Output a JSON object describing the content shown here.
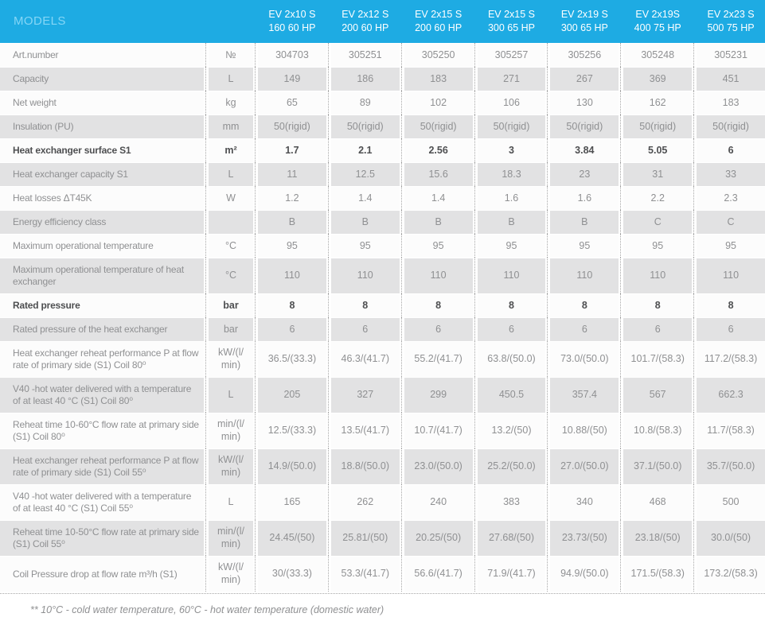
{
  "colors": {
    "header_bg": "#1eabe3",
    "models_color": "#85d6f6",
    "header_col_text": "#ffffff",
    "row_shaded_bg": "#e2e2e3",
    "row_plain_bg": "#fcfcfc",
    "text_gray": "#8f9092",
    "text_dark": "#4e4f51",
    "sep": "#a5a5a5",
    "footnote_color": "#8f9092"
  },
  "table": {
    "models_label": "MODELS",
    "columns": [
      "EV 2x10 S\n160 60 HP",
      "EV 2x12 S\n200 60 HP",
      "EV 2x15 S\n200 60 HP",
      "EV 2x15 S\n300 65 HP",
      "EV 2x19 S\n300 65 HP",
      "EV 2x19S\n400 75 HP",
      "EV 2x23 S\n500 75 HP"
    ],
    "rows": [
      {
        "label": "Art.number",
        "unit": "№",
        "bold": false,
        "tall": false,
        "values": [
          "304703",
          "305251",
          "305250",
          "305257",
          "305256",
          "305248",
          "305231"
        ]
      },
      {
        "label": "Capacity",
        "unit": "L",
        "bold": false,
        "tall": false,
        "values": [
          "149",
          "186",
          "183",
          "271",
          "267",
          "369",
          "451"
        ]
      },
      {
        "label": "Net weight",
        "unit": "kg",
        "bold": false,
        "tall": false,
        "values": [
          "65",
          "89",
          "102",
          "106",
          "130",
          "162",
          "183"
        ]
      },
      {
        "label": "Insulation (PU)",
        "unit": "mm",
        "bold": false,
        "tall": false,
        "values": [
          "50(rigid)",
          "50(rigid)",
          "50(rigid)",
          "50(rigid)",
          "50(rigid)",
          "50(rigid)",
          "50(rigid)"
        ]
      },
      {
        "label": "Heat exchanger surface S1",
        "unit": "m²",
        "bold": true,
        "tall": false,
        "values": [
          "1.7",
          "2.1",
          "2.56",
          "3",
          "3.84",
          "5.05",
          "6"
        ]
      },
      {
        "label": "Heat exchanger capacity S1",
        "unit": "L",
        "bold": false,
        "tall": false,
        "values": [
          "11",
          "12.5",
          "15.6",
          "18.3",
          "23",
          "31",
          "33"
        ]
      },
      {
        "label": "Heat losses ΔT45K",
        "unit": "W",
        "bold": false,
        "tall": false,
        "values": [
          "1.2",
          "1.4",
          "1.4",
          "1.6",
          "1.6",
          "2.2",
          "2.3"
        ]
      },
      {
        "label": "Energy efficiency class",
        "unit": "",
        "bold": false,
        "tall": false,
        "values": [
          "B",
          "B",
          "B",
          "B",
          "B",
          "C",
          "C"
        ]
      },
      {
        "label": "Maximum operational temperature",
        "unit": "°C",
        "bold": false,
        "tall": false,
        "values": [
          "95",
          "95",
          "95",
          "95",
          "95",
          "95",
          "95"
        ]
      },
      {
        "label": "Maximum operational temperature of heat exchanger",
        "unit": "°C",
        "bold": false,
        "tall": true,
        "values": [
          "110",
          "110",
          "110",
          "110",
          "110",
          "110",
          "110"
        ]
      },
      {
        "label": "Rated pressure",
        "unit": "bar",
        "bold": true,
        "tall": false,
        "values": [
          "8",
          "8",
          "8",
          "8",
          "8",
          "8",
          "8"
        ]
      },
      {
        "label": "Rated pressure of the heat exchanger",
        "unit": "bar",
        "bold": false,
        "tall": false,
        "values": [
          "6",
          "6",
          "6",
          "6",
          "6",
          "6",
          "6"
        ]
      },
      {
        "label": "Heat exchanger reheat performance P at flow rate of primary side (S1) Coil 80⁰",
        "unit": "kW/(l/\nmin)",
        "bold": false,
        "tall": true,
        "values": [
          "36.5/(33.3)",
          "46.3/(41.7)",
          "55.2/(41.7)",
          "63.8/(50.0)",
          "73.0/(50.0)",
          "101.7/(58.3)",
          "117.2/(58.3)"
        ]
      },
      {
        "label": "V40 -hot water delivered with a temperature of at least 40 °C (S1) Coil 80⁰",
        "unit": "L",
        "bold": false,
        "tall": true,
        "values": [
          "205",
          "327",
          "299",
          "450.5",
          "357.4",
          "567",
          "662.3"
        ]
      },
      {
        "label": "Reheat time 10-60°C flow rate at primary side (S1) Coil 80⁰",
        "unit": "min/(l/\nmin)",
        "bold": false,
        "tall": true,
        "values": [
          "12.5/(33.3)",
          "13.5/(41.7)",
          "10.7/(41.7)",
          "13.2/(50)",
          "10.88/(50)",
          "10.8/(58.3)",
          "11.7/(58.3)"
        ]
      },
      {
        "label": "Heat exchanger reheat performance P at flow rate of primary side (S1) Coil 55⁰",
        "unit": "kW/(l/\nmin)",
        "bold": false,
        "tall": true,
        "values": [
          "14.9/(50.0)",
          "18.8/(50.0)",
          "23.0/(50.0)",
          "25.2/(50.0)",
          "27.0/(50.0)",
          "37.1/(50.0)",
          "35.7/(50.0)"
        ]
      },
      {
        "label": "V40 -hot water delivered with a temperature of at least 40 °C (S1) Coil 55⁰",
        "unit": "L",
        "bold": false,
        "tall": true,
        "values": [
          "165",
          "262",
          "240",
          "383",
          "340",
          "468",
          "500"
        ]
      },
      {
        "label": "Reheat time 10-50°C flow rate at primary side (S1) Coil 55⁰",
        "unit": "min/(l/\nmin)",
        "bold": false,
        "tall": true,
        "values": [
          "24.45/(50)",
          "25.81/(50)",
          "20.25/(50)",
          "27.68/(50)",
          "23.73/(50)",
          "23.18/(50)",
          "30.0/(50)"
        ]
      },
      {
        "label": "Coil Pressure drop at flow rate m³/h (S1)",
        "unit": "kW/(l/\nmin)",
        "bold": false,
        "tall": true,
        "values": [
          "30/(33.3)",
          "53.3/(41.7)",
          "56.6/(41.7)",
          "71.9/(41.7)",
          "94.9/(50.0)",
          "171.5/(58.3)",
          "173.2/(58.3)"
        ]
      }
    ],
    "footnote": "** 10°C - cold water temperature, 60°C - hot water temperature (domestic water)"
  }
}
